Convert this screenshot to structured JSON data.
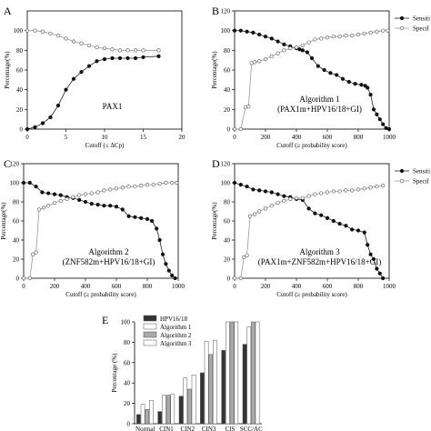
{
  "panel_letters": [
    "A",
    "B",
    "C",
    "D",
    "E"
  ],
  "legend_entries": [
    "Sensiti",
    "Specif"
  ],
  "chart_data": [
    {
      "panel": "A",
      "type": "line",
      "annotation": [
        "PAX1"
      ],
      "xlabel": "Cutoff (≤ ΔCp)",
      "ylabel": "Percentage(%)",
      "xlim": [
        0,
        20
      ],
      "ylim": [
        0,
        120
      ],
      "xticks": [
        0,
        5,
        10,
        15,
        20
      ],
      "yticks": [
        0,
        20,
        40,
        60,
        80,
        100
      ],
      "series": [
        {
          "name": "Sensitivity",
          "marker": "filled",
          "x": [
            0,
            1,
            2,
            3,
            4,
            5,
            6,
            7,
            8,
            9,
            10,
            11,
            12,
            13,
            14,
            15,
            17
          ],
          "y": [
            0,
            2,
            6,
            12,
            24,
            40,
            51,
            58,
            64,
            69,
            71,
            72,
            72,
            72,
            72,
            73,
            74
          ]
        },
        {
          "name": "Specificity",
          "marker": "open",
          "x": [
            0,
            1,
            2,
            3,
            4,
            5,
            6,
            7,
            8,
            9,
            10,
            11,
            12,
            13,
            14,
            15,
            17
          ],
          "y": [
            100,
            100,
            99,
            97,
            95,
            92,
            89,
            87,
            85,
            83,
            82,
            81,
            80,
            80,
            80,
            80,
            80
          ]
        }
      ]
    },
    {
      "panel": "B",
      "type": "line",
      "annotation": [
        "Algorithm 1",
        "(PAX1m+HPV16/18+GI)"
      ],
      "xlabel": "Cutoff (≥ probability score)",
      "ylabel": "Percentage(%)",
      "xlim": [
        0,
        1000
      ],
      "ylim": [
        0,
        120
      ],
      "xticks": [
        0,
        200,
        400,
        600,
        800,
        1000
      ],
      "yticks": [
        0,
        20,
        40,
        60,
        80,
        100,
        120
      ],
      "legend": [
        "Sensiti",
        "Specif"
      ],
      "legend_position": "top-right",
      "series": [
        {
          "name": "Sensitivity",
          "marker": "filled",
          "x": [
            0,
            40,
            80,
            120,
            160,
            200,
            240,
            280,
            320,
            360,
            400,
            420,
            440,
            470,
            500,
            540,
            580,
            620,
            660,
            700,
            740,
            780,
            820,
            845,
            860,
            880,
            900,
            920,
            940,
            960,
            980,
            1000
          ],
          "y": [
            100,
            100,
            99,
            98,
            96,
            94,
            92,
            89,
            86,
            84,
            82,
            81,
            80,
            78,
            72,
            64,
            60,
            57,
            55,
            51,
            48,
            46,
            45,
            44,
            42,
            35,
            20,
            15,
            10,
            5,
            1,
            0
          ]
        },
        {
          "name": "Specificity",
          "marker": "open",
          "x": [
            0,
            40,
            70,
            90,
            110,
            130,
            160,
            200,
            240,
            280,
            320,
            360,
            400,
            440,
            480,
            520,
            560,
            600,
            640,
            680,
            720,
            760,
            800,
            840,
            880,
            920,
            960,
            990
          ],
          "y": [
            0,
            0,
            22,
            23,
            67,
            68,
            69,
            71,
            74,
            77,
            80,
            82,
            83,
            85,
            88,
            91,
            92,
            93,
            94,
            94,
            95,
            95,
            96,
            97,
            98,
            99,
            100,
            100
          ]
        }
      ]
    },
    {
      "panel": "C",
      "type": "line",
      "annotation": [
        "Algorithm 2",
        "(ZNF582m+HPV16/18+GI)"
      ],
      "xlabel": "Cutoff (≥ probability score)",
      "ylabel": "Percentage(%)",
      "xlim": [
        0,
        1000
      ],
      "ylim": [
        0,
        120
      ],
      "xticks": [
        0,
        200,
        400,
        600,
        800,
        1000
      ],
      "yticks": [
        0,
        20,
        40,
        60,
        80,
        100,
        120
      ],
      "series": [
        {
          "name": "Sensitivity",
          "marker": "filled",
          "x": [
            0,
            40,
            80,
            120,
            160,
            200,
            240,
            280,
            320,
            360,
            400,
            440,
            480,
            520,
            560,
            600,
            640,
            680,
            720,
            760,
            800,
            830,
            860,
            880,
            900,
            920,
            940,
            960,
            980
          ],
          "y": [
            100,
            100,
            96,
            90,
            89,
            88,
            87,
            85,
            84,
            82,
            80,
            78,
            77,
            76,
            76,
            75,
            72,
            65,
            64,
            63,
            62,
            60,
            52,
            40,
            25,
            15,
            8,
            3,
            0
          ]
        },
        {
          "name": "Specificity",
          "marker": "open",
          "x": [
            0,
            40,
            60,
            80,
            100,
            130,
            160,
            200,
            240,
            280,
            320,
            360,
            400,
            440,
            480,
            520,
            560,
            600,
            640,
            680,
            720,
            760,
            800,
            840,
            880,
            920,
            960,
            990
          ],
          "y": [
            0,
            0,
            25,
            27,
            72,
            74,
            76,
            79,
            81,
            83,
            85,
            87,
            88,
            89,
            90,
            92,
            93,
            94,
            95,
            96,
            96,
            97,
            98,
            98,
            99,
            100,
            100,
            100
          ]
        }
      ]
    },
    {
      "panel": "D",
      "type": "line",
      "annotation": [
        "Algorithm 3",
        "(PAX1m+ZNF582m+HPV16/18+GI)"
      ],
      "xlabel": "Cutoff (≥ probability score)",
      "ylabel": "Percentage(%)",
      "xlim": [
        0,
        1000
      ],
      "ylim": [
        0,
        120
      ],
      "xticks": [
        0,
        200,
        400,
        600,
        800,
        1000
      ],
      "yticks": [
        0,
        20,
        40,
        60,
        80,
        100,
        120
      ],
      "legend": [
        "Sensiti",
        "Specif"
      ],
      "legend_position": "top-right",
      "series": [
        {
          "name": "Sensitivity",
          "marker": "filled",
          "x": [
            0,
            40,
            80,
            120,
            160,
            200,
            240,
            280,
            320,
            360,
            400,
            440,
            480,
            520,
            560,
            600,
            640,
            680,
            720,
            760,
            800,
            840,
            860,
            880,
            900,
            920,
            940,
            960
          ],
          "y": [
            100,
            98,
            96,
            93,
            92,
            91,
            90,
            88,
            86,
            85,
            83,
            82,
            73,
            68,
            66,
            63,
            60,
            57,
            55,
            51,
            50,
            48,
            35,
            25,
            20,
            10,
            5,
            0
          ]
        },
        {
          "name": "Specificity",
          "marker": "open",
          "x": [
            0,
            40,
            60,
            80,
            100,
            130,
            160,
            200,
            240,
            280,
            320,
            360,
            400,
            440,
            480,
            520,
            560,
            600,
            640,
            680,
            720,
            760,
            800,
            840,
            880,
            920,
            960
          ],
          "y": [
            0,
            0,
            22,
            24,
            65,
            67,
            70,
            73,
            76,
            79,
            81,
            83,
            84,
            84,
            86,
            88,
            89,
            90,
            91,
            91,
            92,
            92,
            93,
            94,
            95,
            96,
            97
          ]
        }
      ]
    },
    {
      "panel": "E",
      "type": "bar",
      "ylabel": "Percentage (%)",
      "ylim": [
        0,
        100
      ],
      "yticks": [
        0,
        20,
        40,
        60,
        80,
        100
      ],
      "categories": [
        "Normal",
        "CIN1",
        "CIN2",
        "CIN3",
        "CIS",
        "SCC/AC"
      ],
      "legend": [
        "HPV16/18",
        "Algorithm 1",
        "Algorithm 2",
        "Algorithm 3"
      ],
      "legend_position": "top-left",
      "series": [
        {
          "name": "HPV16/18",
          "color": "#333333",
          "values": [
            9,
            12,
            27,
            50,
            72,
            78
          ]
        },
        {
          "name": "Algorithm 1",
          "color": "#ffffff",
          "values": [
            19,
            28,
            45,
            81,
            100,
            95
          ]
        },
        {
          "name": "Algorithm 2",
          "color": "#aaaaaa",
          "values": [
            14,
            28,
            34,
            68,
            100,
            100
          ]
        },
        {
          "name": "Algorithm 3",
          "color": "#ffffff",
          "values": [
            23,
            29,
            48,
            82,
            100,
            100
          ]
        }
      ]
    }
  ]
}
